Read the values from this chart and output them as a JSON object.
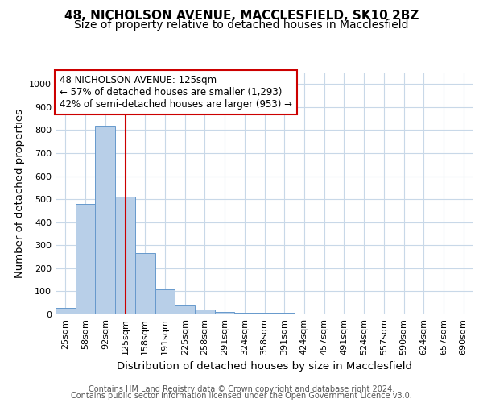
{
  "title": "48, NICHOLSON AVENUE, MACCLESFIELD, SK10 2BZ",
  "subtitle": "Size of property relative to detached houses in Macclesfield",
  "xlabel": "Distribution of detached houses by size in Macclesfield",
  "ylabel": "Number of detached properties",
  "footnote1": "Contains HM Land Registry data © Crown copyright and database right 2024.",
  "footnote2": "Contains public sector information licensed under the Open Government Licence v3.0.",
  "bin_labels": [
    "25sqm",
    "58sqm",
    "92sqm",
    "125sqm",
    "158sqm",
    "191sqm",
    "225sqm",
    "258sqm",
    "291sqm",
    "324sqm",
    "358sqm",
    "391sqm",
    "424sqm",
    "457sqm",
    "491sqm",
    "524sqm",
    "557sqm",
    "590sqm",
    "624sqm",
    "657sqm",
    "690sqm"
  ],
  "bar_values": [
    28,
    480,
    820,
    510,
    265,
    110,
    38,
    20,
    12,
    8,
    8,
    8,
    0,
    0,
    0,
    0,
    0,
    0,
    0,
    0,
    0
  ],
  "bar_color": "#b8cfe8",
  "bar_edge_color": "#6699cc",
  "red_line_index": 3,
  "red_line_color": "#cc0000",
  "annotation_line1": "48 NICHOLSON AVENUE: 125sqm",
  "annotation_line2": "← 57% of detached houses are smaller (1,293)",
  "annotation_line3": "42% of semi-detached houses are larger (953) →",
  "annotation_box_color": "#ffffff",
  "annotation_box_edge_color": "#cc0000",
  "ylim": [
    0,
    1050
  ],
  "yticks": [
    0,
    100,
    200,
    300,
    400,
    500,
    600,
    700,
    800,
    900,
    1000
  ],
  "background_color": "#ffffff",
  "grid_color": "#c8d8e8",
  "title_fontsize": 11,
  "subtitle_fontsize": 10,
  "axis_label_fontsize": 9.5,
  "tick_fontsize": 8,
  "annotation_fontsize": 8.5
}
